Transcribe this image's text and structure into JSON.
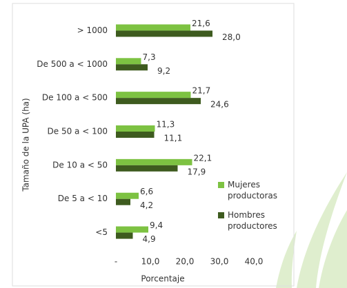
{
  "chart_data": {
    "type": "hbar",
    "categories": [
      "> 1000",
      "De 500 a < 1000",
      "De 100 a < 500",
      "De 50 a < 100",
      "De 10 a < 50",
      "De 5 a < 10",
      "<5"
    ],
    "series": [
      {
        "name": "Mujeres productoras",
        "color": "#7dc242",
        "values": [
          21.6,
          7.3,
          21.7,
          11.3,
          22.1,
          6.6,
          9.4
        ],
        "value_labels": [
          "21,6",
          "7,3",
          "21,7",
          "11,3",
          "22,1",
          "6,6",
          "9,4"
        ]
      },
      {
        "name": "Hombres productores",
        "color": "#3e5b1f",
        "values": [
          28.0,
          9.2,
          24.6,
          11.1,
          17.9,
          4.2,
          4.9
        ],
        "value_labels": [
          "28,0",
          "9,2",
          "24,6",
          "11,1",
          "17,9",
          "4,2",
          "4,9"
        ]
      }
    ],
    "xlim": [
      0,
      40
    ],
    "xticks": [
      {
        "value": 0,
        "label": "-"
      },
      {
        "value": 10,
        "label": "10,0"
      },
      {
        "value": 20,
        "label": "20,0"
      },
      {
        "value": 30,
        "label": "30,0"
      },
      {
        "value": 40,
        "label": "40,0"
      }
    ],
    "xlabel": "Porcentaje",
    "ylabel": "Tamaño de la UPA (ha)",
    "legend": "right"
  }
}
